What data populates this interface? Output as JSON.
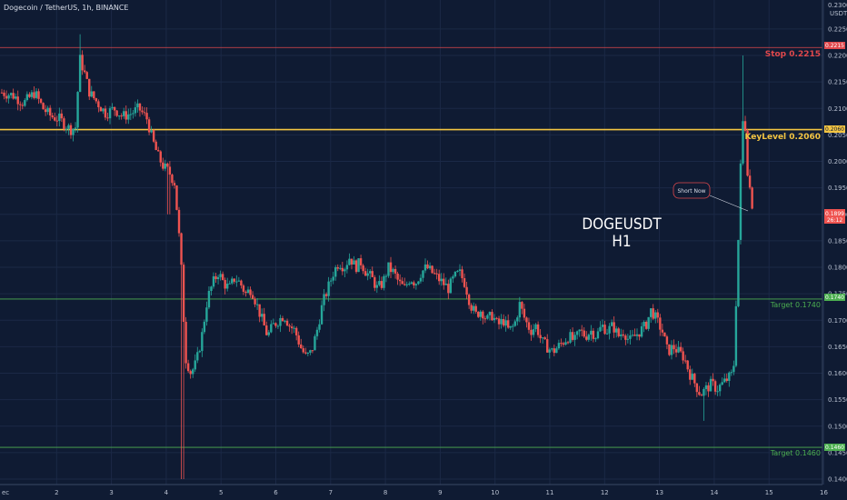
{
  "header": {
    "symbol_line": "Dogecoin / TetherUS, 1h, BINANCE"
  },
  "price_axis": {
    "unit_label": "USDT",
    "top_partial_tick": "0.2300",
    "ticks": [
      "0.2250",
      "0.2200",
      "0.2150",
      "0.2100",
      "0.2050",
      "0.2000",
      "0.1950",
      "0.1900",
      "0.1850",
      "0.1800",
      "0.1750",
      "0.1700",
      "0.1650",
      "0.1600",
      "0.1550",
      "0.1500",
      "0.1450",
      "0.1400"
    ],
    "current_price_tag": "0.1899",
    "countdown_tag": "26:12"
  },
  "time_axis": {
    "ticks": [
      "2",
      "3",
      "4",
      "5",
      "6",
      "7",
      "8",
      "9",
      "10",
      "11",
      "12",
      "13",
      "14",
      "15",
      "16"
    ],
    "left_fragment": "ec"
  },
  "levels": {
    "stop": {
      "label": "Stop 0.2215",
      "tag": "0.2215",
      "price": 0.2215,
      "color": "#e0484c"
    },
    "key": {
      "label": "KeyLevel 0.2060",
      "tag": "0.2060",
      "price": 0.206,
      "color": "#f4c542"
    },
    "target1": {
      "label": "Target 0.1740",
      "tag": "0.1740",
      "price": 0.174,
      "color": "#4caf50"
    },
    "target2": {
      "label": "Target 0.1460",
      "tag": "0.1460",
      "price": 0.146,
      "color": "#4caf50"
    }
  },
  "annotation": {
    "title_line1": "DOGEUSDT",
    "title_line2": "H1",
    "callout": "Short Now"
  },
  "colors": {
    "up": "#26a69a",
    "down": "#ef5350",
    "background": "#0f1b33"
  },
  "chart_data": {
    "type": "candlestick",
    "price_range": [
      0.139,
      0.231
    ],
    "time_range_days": [
      1.0,
      16.0
    ],
    "close_series": [
      {
        "t": 1.0,
        "p": 0.213
      },
      {
        "t": 1.2,
        "p": 0.2125
      },
      {
        "t": 1.4,
        "p": 0.211
      },
      {
        "t": 1.6,
        "p": 0.213
      },
      {
        "t": 1.75,
        "p": 0.21
      },
      {
        "t": 1.9,
        "p": 0.2085
      },
      {
        "t": 2.05,
        "p": 0.208
      },
      {
        "t": 2.15,
        "p": 0.207
      },
      {
        "t": 2.25,
        "p": 0.206
      },
      {
        "t": 2.35,
        "p": 0.2065
      },
      {
        "t": 2.42,
        "p": 0.2195
      },
      {
        "t": 2.5,
        "p": 0.217
      },
      {
        "t": 2.6,
        "p": 0.213
      },
      {
        "t": 2.75,
        "p": 0.211
      },
      {
        "t": 2.9,
        "p": 0.209
      },
      {
        "t": 3.05,
        "p": 0.21
      },
      {
        "t": 3.2,
        "p": 0.2085
      },
      {
        "t": 3.35,
        "p": 0.209
      },
      {
        "t": 3.5,
        "p": 0.21
      },
      {
        "t": 3.65,
        "p": 0.208
      },
      {
        "t": 3.75,
        "p": 0.204
      },
      {
        "t": 3.85,
        "p": 0.201
      },
      {
        "t": 3.95,
        "p": 0.199
      },
      {
        "t": 4.05,
        "p": 0.198
      },
      {
        "t": 4.15,
        "p": 0.196
      },
      {
        "t": 4.22,
        "p": 0.188
      },
      {
        "t": 4.28,
        "p": 0.179
      },
      {
        "t": 4.35,
        "p": 0.163
      },
      {
        "t": 4.45,
        "p": 0.16
      },
      {
        "t": 4.55,
        "p": 0.162
      },
      {
        "t": 4.65,
        "p": 0.167
      },
      {
        "t": 4.75,
        "p": 0.174
      },
      {
        "t": 4.85,
        "p": 0.177
      },
      {
        "t": 4.95,
        "p": 0.179
      },
      {
        "t": 5.05,
        "p": 0.177
      },
      {
        "t": 5.15,
        "p": 0.176
      },
      {
        "t": 5.25,
        "p": 0.178
      },
      {
        "t": 5.35,
        "p": 0.177
      },
      {
        "t": 5.45,
        "p": 0.175
      },
      {
        "t": 5.55,
        "p": 0.176
      },
      {
        "t": 5.65,
        "p": 0.173
      },
      {
        "t": 5.75,
        "p": 0.17
      },
      {
        "t": 5.85,
        "p": 0.167
      },
      {
        "t": 5.95,
        "p": 0.169
      },
      {
        "t": 6.05,
        "p": 0.17
      },
      {
        "t": 6.15,
        "p": 0.171
      },
      {
        "t": 6.25,
        "p": 0.169
      },
      {
        "t": 6.35,
        "p": 0.168
      },
      {
        "t": 6.45,
        "p": 0.165
      },
      {
        "t": 6.55,
        "p": 0.163
      },
      {
        "t": 6.65,
        "p": 0.164
      },
      {
        "t": 6.75,
        "p": 0.168
      },
      {
        "t": 6.85,
        "p": 0.173
      },
      {
        "t": 6.95,
        "p": 0.176
      },
      {
        "t": 7.05,
        "p": 0.179
      },
      {
        "t": 7.15,
        "p": 0.181
      },
      {
        "t": 7.25,
        "p": 0.18
      },
      {
        "t": 7.35,
        "p": 0.182
      },
      {
        "t": 7.45,
        "p": 0.18
      },
      {
        "t": 7.55,
        "p": 0.181
      },
      {
        "t": 7.65,
        "p": 0.179
      },
      {
        "t": 7.75,
        "p": 0.178
      },
      {
        "t": 7.85,
        "p": 0.176
      },
      {
        "t": 7.95,
        "p": 0.177
      },
      {
        "t": 8.05,
        "p": 0.18
      },
      {
        "t": 8.15,
        "p": 0.179
      },
      {
        "t": 8.25,
        "p": 0.177
      },
      {
        "t": 8.35,
        "p": 0.176
      },
      {
        "t": 8.45,
        "p": 0.178
      },
      {
        "t": 8.55,
        "p": 0.177
      },
      {
        "t": 8.65,
        "p": 0.179
      },
      {
        "t": 8.75,
        "p": 0.18
      },
      {
        "t": 8.85,
        "p": 0.179
      },
      {
        "t": 8.95,
        "p": 0.178
      },
      {
        "t": 9.05,
        "p": 0.177
      },
      {
        "t": 9.15,
        "p": 0.176
      },
      {
        "t": 9.25,
        "p": 0.178
      },
      {
        "t": 9.35,
        "p": 0.179
      },
      {
        "t": 9.45,
        "p": 0.177
      },
      {
        "t": 9.55,
        "p": 0.173
      },
      {
        "t": 9.65,
        "p": 0.171
      },
      {
        "t": 9.75,
        "p": 0.172
      },
      {
        "t": 9.85,
        "p": 0.17
      },
      {
        "t": 9.95,
        "p": 0.171
      },
      {
        "t": 10.05,
        "p": 0.169
      },
      {
        "t": 10.15,
        "p": 0.17
      },
      {
        "t": 10.25,
        "p": 0.168
      },
      {
        "t": 10.35,
        "p": 0.169
      },
      {
        "t": 10.45,
        "p": 0.173
      },
      {
        "t": 10.55,
        "p": 0.17
      },
      {
        "t": 10.65,
        "p": 0.168
      },
      {
        "t": 10.75,
        "p": 0.169
      },
      {
        "t": 10.85,
        "p": 0.166
      },
      {
        "t": 10.95,
        "p": 0.165
      },
      {
        "t": 11.05,
        "p": 0.164
      },
      {
        "t": 11.15,
        "p": 0.165
      },
      {
        "t": 11.25,
        "p": 0.166
      },
      {
        "t": 11.35,
        "p": 0.167
      },
      {
        "t": 11.45,
        "p": 0.166
      },
      {
        "t": 11.55,
        "p": 0.168
      },
      {
        "t": 11.65,
        "p": 0.167
      },
      {
        "t": 11.75,
        "p": 0.168
      },
      {
        "t": 11.85,
        "p": 0.167
      },
      {
        "t": 11.95,
        "p": 0.169
      },
      {
        "t": 12.05,
        "p": 0.168
      },
      {
        "t": 12.15,
        "p": 0.169
      },
      {
        "t": 12.25,
        "p": 0.167
      },
      {
        "t": 12.35,
        "p": 0.168
      },
      {
        "t": 12.45,
        "p": 0.166
      },
      {
        "t": 12.55,
        "p": 0.167
      },
      {
        "t": 12.65,
        "p": 0.168
      },
      {
        "t": 12.75,
        "p": 0.169
      },
      {
        "t": 12.85,
        "p": 0.172
      },
      {
        "t": 12.95,
        "p": 0.17
      },
      {
        "t": 13.05,
        "p": 0.168
      },
      {
        "t": 13.15,
        "p": 0.164
      },
      {
        "t": 13.25,
        "p": 0.165
      },
      {
        "t": 13.35,
        "p": 0.164
      },
      {
        "t": 13.45,
        "p": 0.163
      },
      {
        "t": 13.55,
        "p": 0.16
      },
      {
        "t": 13.65,
        "p": 0.158
      },
      {
        "t": 13.75,
        "p": 0.156
      },
      {
        "t": 13.85,
        "p": 0.157
      },
      {
        "t": 13.95,
        "p": 0.158
      },
      {
        "t": 14.05,
        "p": 0.157
      },
      {
        "t": 14.15,
        "p": 0.158
      },
      {
        "t": 14.25,
        "p": 0.159
      },
      {
        "t": 14.35,
        "p": 0.16
      },
      {
        "t": 14.45,
        "p": 0.188
      },
      {
        "t": 14.5,
        "p": 0.205
      },
      {
        "t": 14.55,
        "p": 0.21
      },
      {
        "t": 14.6,
        "p": 0.199
      },
      {
        "t": 14.65,
        "p": 0.195
      },
      {
        "t": 14.72,
        "p": 0.1899
      }
    ]
  }
}
